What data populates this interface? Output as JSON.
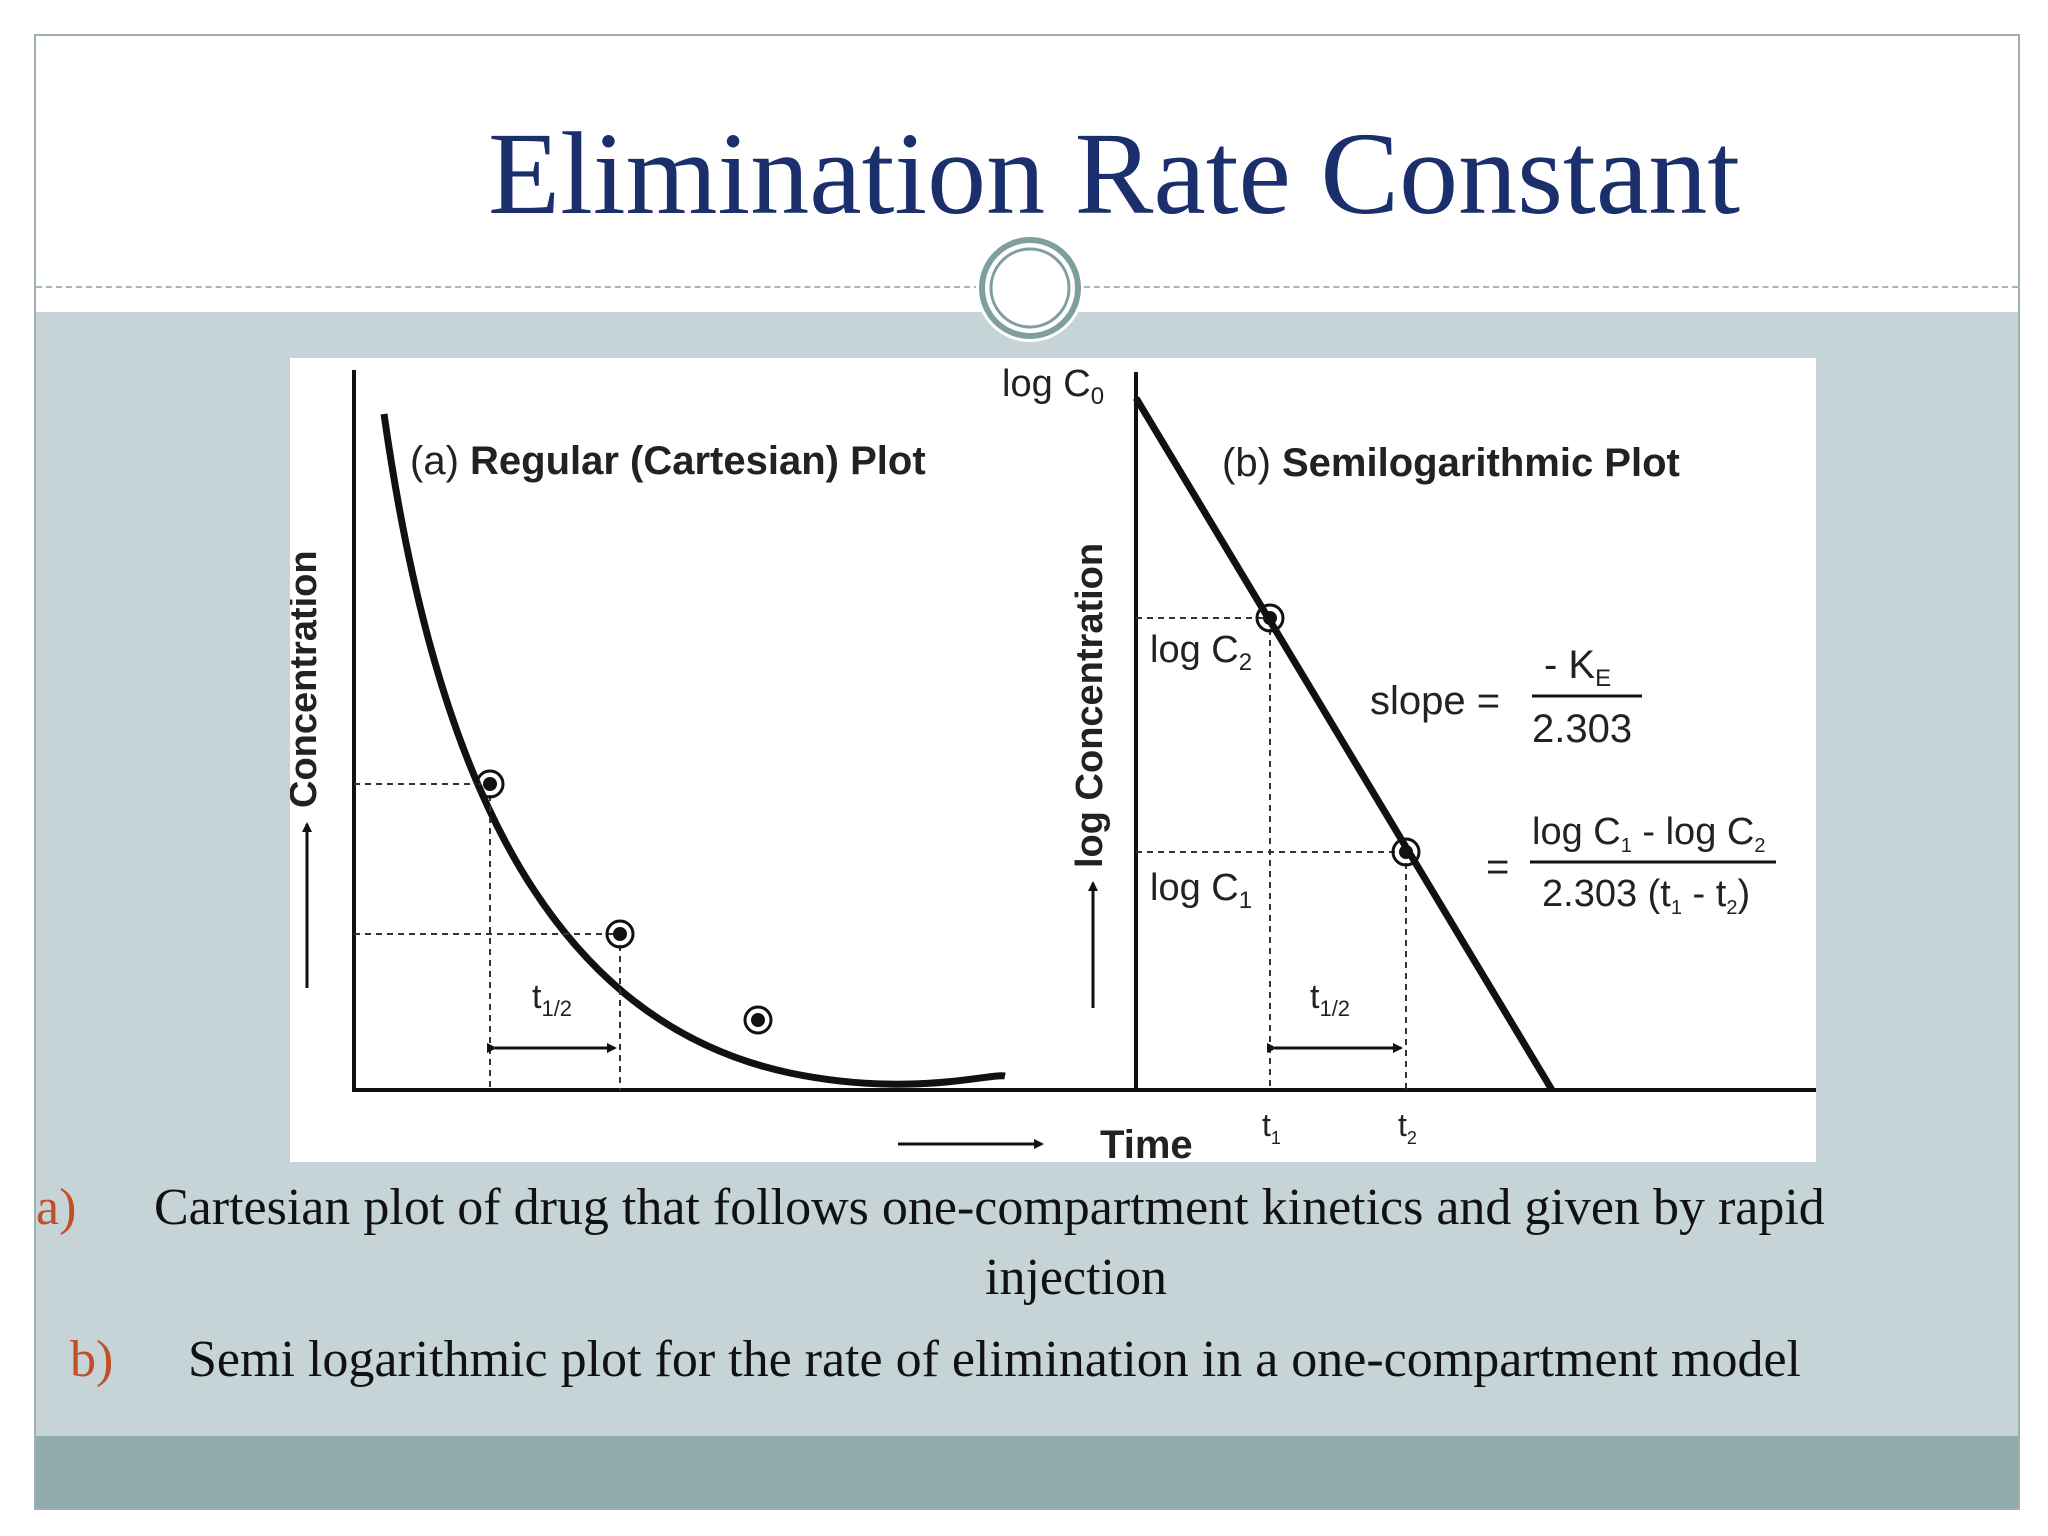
{
  "slide": {
    "title": "Elimination Rate Constant"
  },
  "figure": {
    "panel_a_title_prefix": "(a) ",
    "panel_a_title": "Regular (Cartesian) Plot",
    "panel_b_title_prefix": "(b) ",
    "panel_b_title": "Semilogarithmic Plot",
    "y_label_a": "Concentration",
    "y_label_b": "log Concentration",
    "x_label": "Time",
    "log_c0": "log C",
    "log_c0_sub": "0",
    "log_c2": "log C",
    "log_c2_sub": "2",
    "log_c1": "log C",
    "log_c1_sub": "1",
    "half_life": "t",
    "half_life_sub": "1/2",
    "t1": "t",
    "t1_sub": "1",
    "t2": "t",
    "t2_sub": "2",
    "slope_label": "slope =",
    "slope_num": "- K",
    "slope_num_sub": "E",
    "slope_den": "2.303",
    "eq_sign": "=",
    "eq_num": "log C",
    "eq_num_sub1": "1",
    "eq_num_mid": " - log C",
    "eq_num_sub2": "2",
    "eq_den_a": "2.303 (t",
    "eq_den_sub1": "1",
    "eq_den_mid": " - t",
    "eq_den_sub2": "2",
    "eq_den_end": ")"
  },
  "captions": [
    {
      "marker": "a)",
      "text": "Cartesian plot of drug that follows  one-compartment kinetics and given by rapid",
      "text_line2": "injection"
    },
    {
      "marker": "b)",
      "text": "Semi logarithmic  plot for the rate of elimination in a one-compartment model"
    }
  ],
  "colors": {
    "title": "#1a2f6b",
    "band": "#c6d3d7",
    "footer": "#8fabab",
    "marker": "#c0502a"
  }
}
